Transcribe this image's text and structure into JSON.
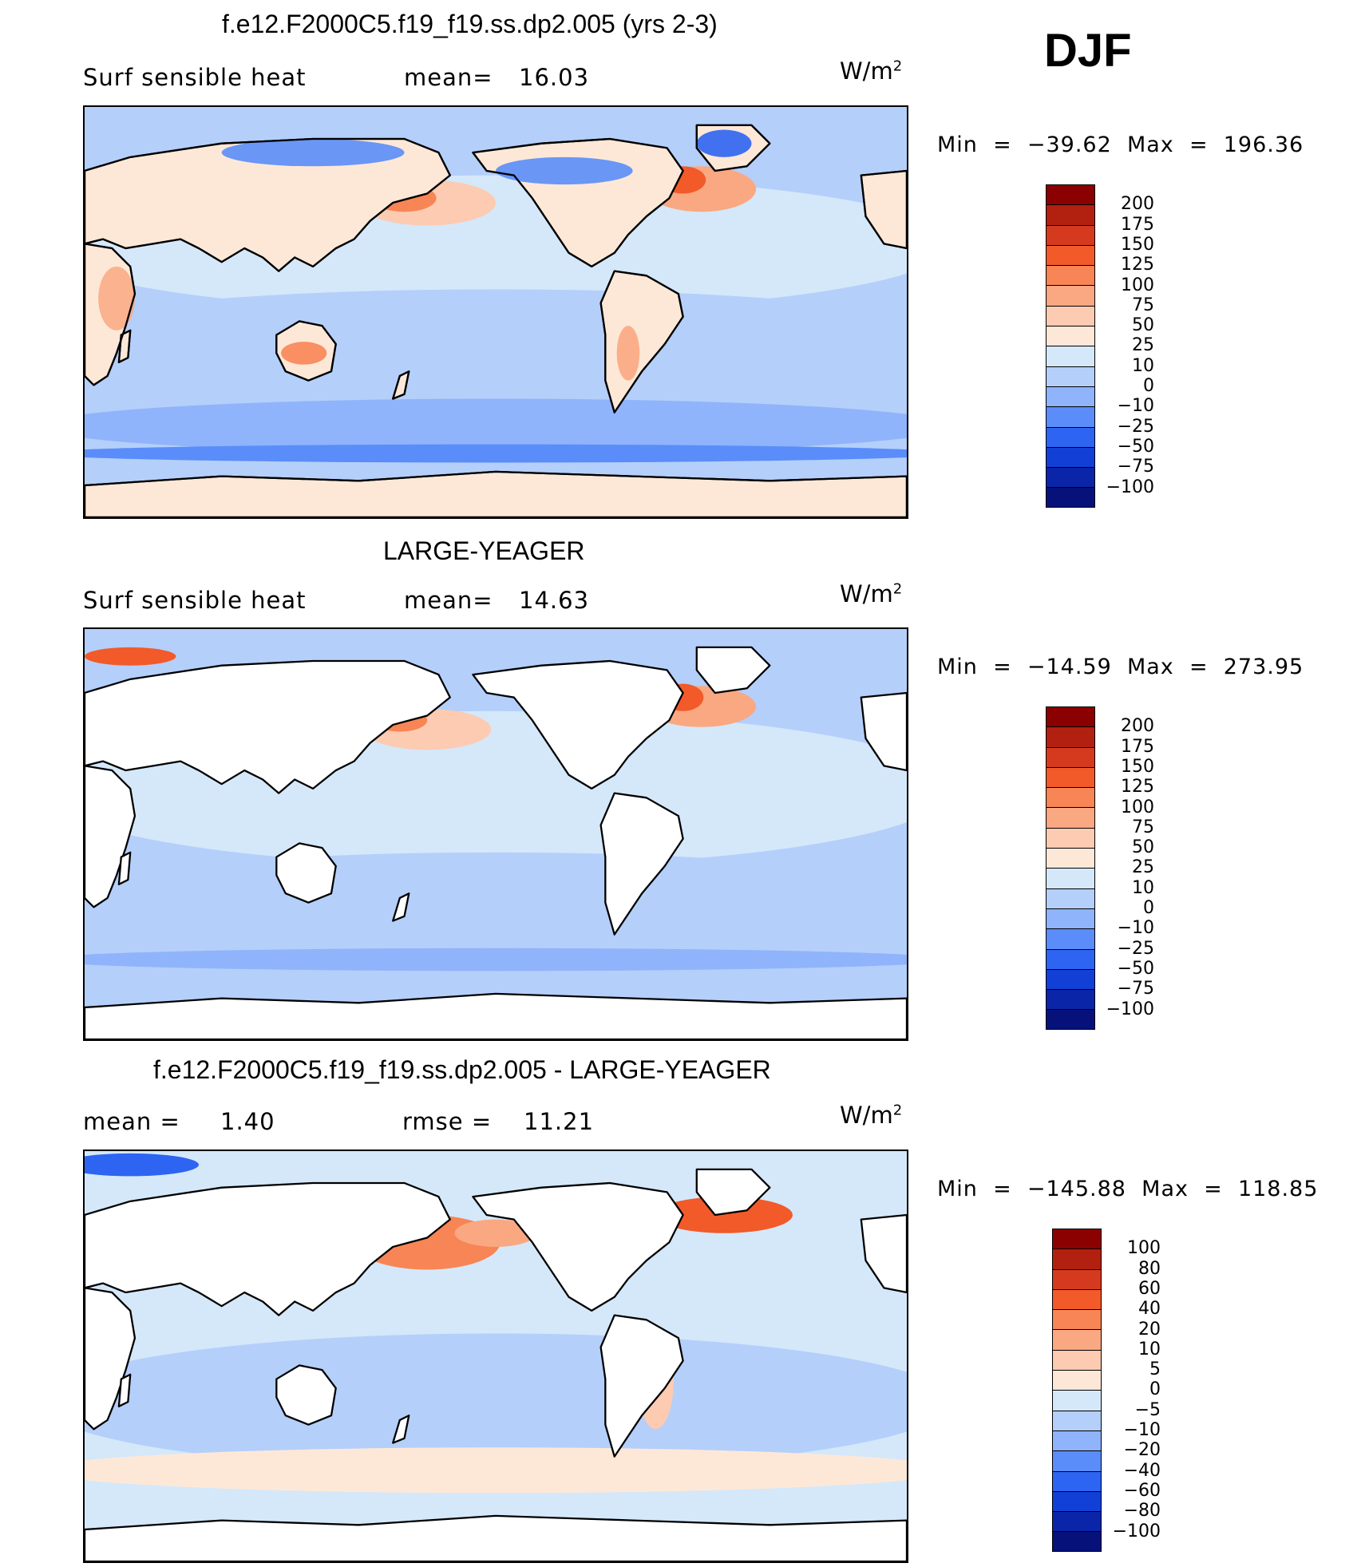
{
  "season": "DJF",
  "panels": [
    {
      "title": "f.e12.F2000C5.f19_f19.ss.dp2.005 (yrs 2-3)",
      "left_label": "Surf  sensible  heat",
      "stat_label": "mean=",
      "stat_value": "16.03",
      "stat2_label": "",
      "stat2_value": "",
      "units": "W/m",
      "units_sup": "2",
      "min_label": "Min",
      "min_value": "−39.62",
      "max_label": "Max",
      "max_value": "196.36",
      "land_colored": true,
      "levels": [
        "200",
        "175",
        "150",
        "125",
        "100",
        "75",
        "50",
        "25",
        "10",
        "0",
        "−10",
        "−25",
        "−50",
        "−75",
        "−100"
      ],
      "colors": [
        "#8b0000",
        "#b22010",
        "#d63a1e",
        "#f25a2a",
        "#f88555",
        "#f9a882",
        "#fccbb2",
        "#fde8d8",
        "#d4e8fa",
        "#b4cffa",
        "#8fb4fb",
        "#5a8df9",
        "#2e64f2",
        "#1240d6",
        "#0a25a8",
        "#06127a"
      ]
    },
    {
      "title": "LARGE-YEAGER",
      "left_label": "Surf  sensible  heat",
      "stat_label": "mean=",
      "stat_value": "14.63",
      "stat2_label": "",
      "stat2_value": "",
      "units": "W/m",
      "units_sup": "2",
      "min_label": "Min",
      "min_value": "−14.59",
      "max_label": "Max",
      "max_value": "273.95",
      "land_colored": false,
      "levels": [
        "200",
        "175",
        "150",
        "125",
        "100",
        "75",
        "50",
        "25",
        "10",
        "0",
        "−10",
        "−25",
        "−50",
        "−75",
        "−100"
      ],
      "colors": [
        "#8b0000",
        "#b22010",
        "#d63a1e",
        "#f25a2a",
        "#f88555",
        "#f9a882",
        "#fccbb2",
        "#fde8d8",
        "#d4e8fa",
        "#b4cffa",
        "#8fb4fb",
        "#5a8df9",
        "#2e64f2",
        "#1240d6",
        "#0a25a8",
        "#06127a"
      ]
    },
    {
      "title": "f.e12.F2000C5.f19_f19.ss.dp2.005 - LARGE-YEAGER",
      "left_label": "mean  =",
      "stat_label": "",
      "stat_value": "1.40",
      "stat2_label": "rmse  =",
      "stat2_value": "11.21",
      "units": "W/m",
      "units_sup": "2",
      "min_label": "Min",
      "min_value": "−145.88",
      "max_label": "Max",
      "max_value": "118.85",
      "land_colored": false,
      "levels": [
        "100",
        "80",
        "60",
        "40",
        "20",
        "10",
        "5",
        "0",
        "−5",
        "−10",
        "−20",
        "−40",
        "−60",
        "−80",
        "−100"
      ],
      "colors": [
        "#8b0000",
        "#b22010",
        "#d63a1e",
        "#f25a2a",
        "#f88555",
        "#f9a882",
        "#fccbb2",
        "#fde8d8",
        "#d4e8fa",
        "#b4cffa",
        "#8fb4fb",
        "#5a8df9",
        "#2e64f2",
        "#1240d6",
        "#0a25a8",
        "#06127a"
      ]
    }
  ]
}
